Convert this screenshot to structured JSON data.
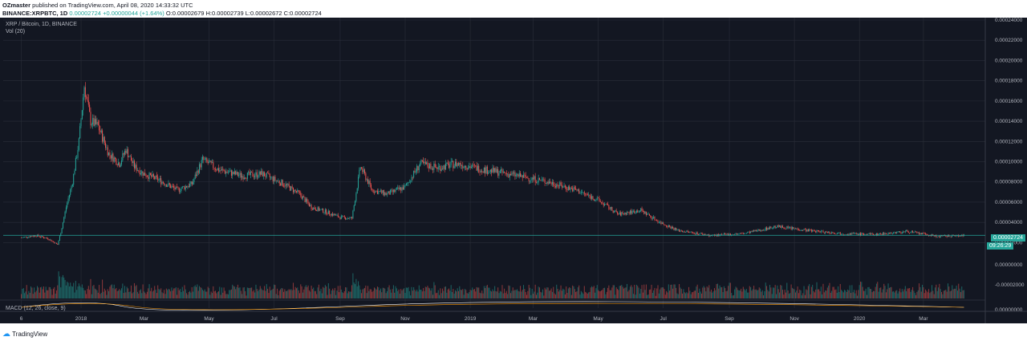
{
  "header": {
    "author": "OZmaster",
    "published": " published on TradingView.com, April 08, 2020 14:33:32 UTC",
    "ticker": "BINANCE:XRPBTC, 1D",
    "last": " 0.00002724",
    "change": " +0.00000044 (+1.64%)",
    "ohlc": " O:0.00002679 H:0.00002739 L:0.00002672 C:0.00002724"
  },
  "overlay": {
    "symbol_line": "XRP / Bitcoin, 1D, BINANCE",
    "vol_label": "Vol (20)",
    "macd_label": "MACD (12, 26, close, 9)"
  },
  "footer": {
    "brand": "TradingView"
  },
  "colors": {
    "up": "#26a69a",
    "down": "#ef5350",
    "background": "#131722",
    "grid": "#2a2e39",
    "macd": "#ffffff",
    "signal": "#ff9800"
  },
  "chart_data": {
    "type": "candlestick",
    "title": "XRP / Bitcoin, 1D, BINANCE",
    "last_price": "0.00002724",
    "countdown": "09:26:29",
    "x_tick_labels": [
      "6",
      "2018",
      "Mar",
      "May",
      "Jul",
      "Sep",
      "Nov",
      "2019",
      "Mar",
      "May",
      "Jul",
      "Sep",
      "Nov",
      "2020",
      "Mar"
    ],
    "y_tick_labels": [
      "0.00024000",
      "0.00022000",
      "0.00020000",
      "0.00018000",
      "0.00016000",
      "0.00014000",
      "0.00012000",
      "0.00010000",
      "0.00008000",
      "0.00006000",
      "0.00004000",
      "0.00002000"
    ],
    "volume_axis_labels": [
      "0.00000000",
      "-0.00002000"
    ],
    "macd_axis_labels": [
      "0.00000000"
    ],
    "ylim": [
      1e-05,
      0.00024
    ],
    "close_path": [
      {
        "x": "2017-11-06",
        "y": 2.5e-05
      },
      {
        "x": "2017-11-20",
        "y": 2.7e-05
      },
      {
        "x": "2017-12-01",
        "y": 2.4e-05
      },
      {
        "x": "2017-12-10",
        "y": 1.8e-05
      },
      {
        "x": "2017-12-13",
        "y": 3e-05
      },
      {
        "x": "2017-12-18",
        "y": 5.5e-05
      },
      {
        "x": "2017-12-24",
        "y": 8e-05
      },
      {
        "x": "2017-12-30",
        "y": 0.00012
      },
      {
        "x": "2018-01-04",
        "y": 0.000175
      },
      {
        "x": "2018-01-10",
        "y": 0.00014
      },
      {
        "x": "2018-01-17",
        "y": 0.000135
      },
      {
        "x": "2018-01-27",
        "y": 0.000108
      },
      {
        "x": "2018-02-06",
        "y": 9.8e-05
      },
      {
        "x": "2018-02-12",
        "y": 0.000112
      },
      {
        "x": "2018-02-20",
        "y": 9.5e-05
      },
      {
        "x": "2018-03-01",
        "y": 8.8e-05
      },
      {
        "x": "2018-03-15",
        "y": 8.2e-05
      },
      {
        "x": "2018-04-01",
        "y": 7.2e-05
      },
      {
        "x": "2018-04-15",
        "y": 7.8e-05
      },
      {
        "x": "2018-04-25",
        "y": 0.000102
      },
      {
        "x": "2018-05-10",
        "y": 9.2e-05
      },
      {
        "x": "2018-06-01",
        "y": 8.6e-05
      },
      {
        "x": "2018-06-20",
        "y": 8.8e-05
      },
      {
        "x": "2018-07-10",
        "y": 7.8e-05
      },
      {
        "x": "2018-07-25",
        "y": 6.8e-05
      },
      {
        "x": "2018-08-05",
        "y": 5.5e-05
      },
      {
        "x": "2018-08-20",
        "y": 5e-05
      },
      {
        "x": "2018-09-01",
        "y": 4.5e-05
      },
      {
        "x": "2018-09-12",
        "y": 4.4e-05
      },
      {
        "x": "2018-09-20",
        "y": 9.5e-05
      },
      {
        "x": "2018-10-01",
        "y": 7.2e-05
      },
      {
        "x": "2018-10-15",
        "y": 6.8e-05
      },
      {
        "x": "2018-11-01",
        "y": 7.5e-05
      },
      {
        "x": "2018-11-15",
        "y": 9.8e-05
      },
      {
        "x": "2018-12-01",
        "y": 9.4e-05
      },
      {
        "x": "2018-12-20",
        "y": 9.8e-05
      },
      {
        "x": "2019-01-15",
        "y": 9.2e-05
      },
      {
        "x": "2019-02-15",
        "y": 8.6e-05
      },
      {
        "x": "2019-03-15",
        "y": 8e-05
      },
      {
        "x": "2019-04-10",
        "y": 7.2e-05
      },
      {
        "x": "2019-05-01",
        "y": 6.2e-05
      },
      {
        "x": "2019-05-20",
        "y": 4.8e-05
      },
      {
        "x": "2019-06-10",
        "y": 5.2e-05
      },
      {
        "x": "2019-06-28",
        "y": 4e-05
      },
      {
        "x": "2019-07-15",
        "y": 3.2e-05
      },
      {
        "x": "2019-08-15",
        "y": 2.7e-05
      },
      {
        "x": "2019-09-15",
        "y": 2.9e-05
      },
      {
        "x": "2019-10-15",
        "y": 3.6e-05
      },
      {
        "x": "2019-11-15",
        "y": 3.2e-05
      },
      {
        "x": "2019-12-15",
        "y": 2.9e-05
      },
      {
        "x": "2020-01-15",
        "y": 2.8e-05
      },
      {
        "x": "2020-02-15",
        "y": 3.1e-05
      },
      {
        "x": "2020-03-15",
        "y": 2.6e-05
      },
      {
        "x": "2020-04-08",
        "y": 2.724e-05
      }
    ]
  }
}
